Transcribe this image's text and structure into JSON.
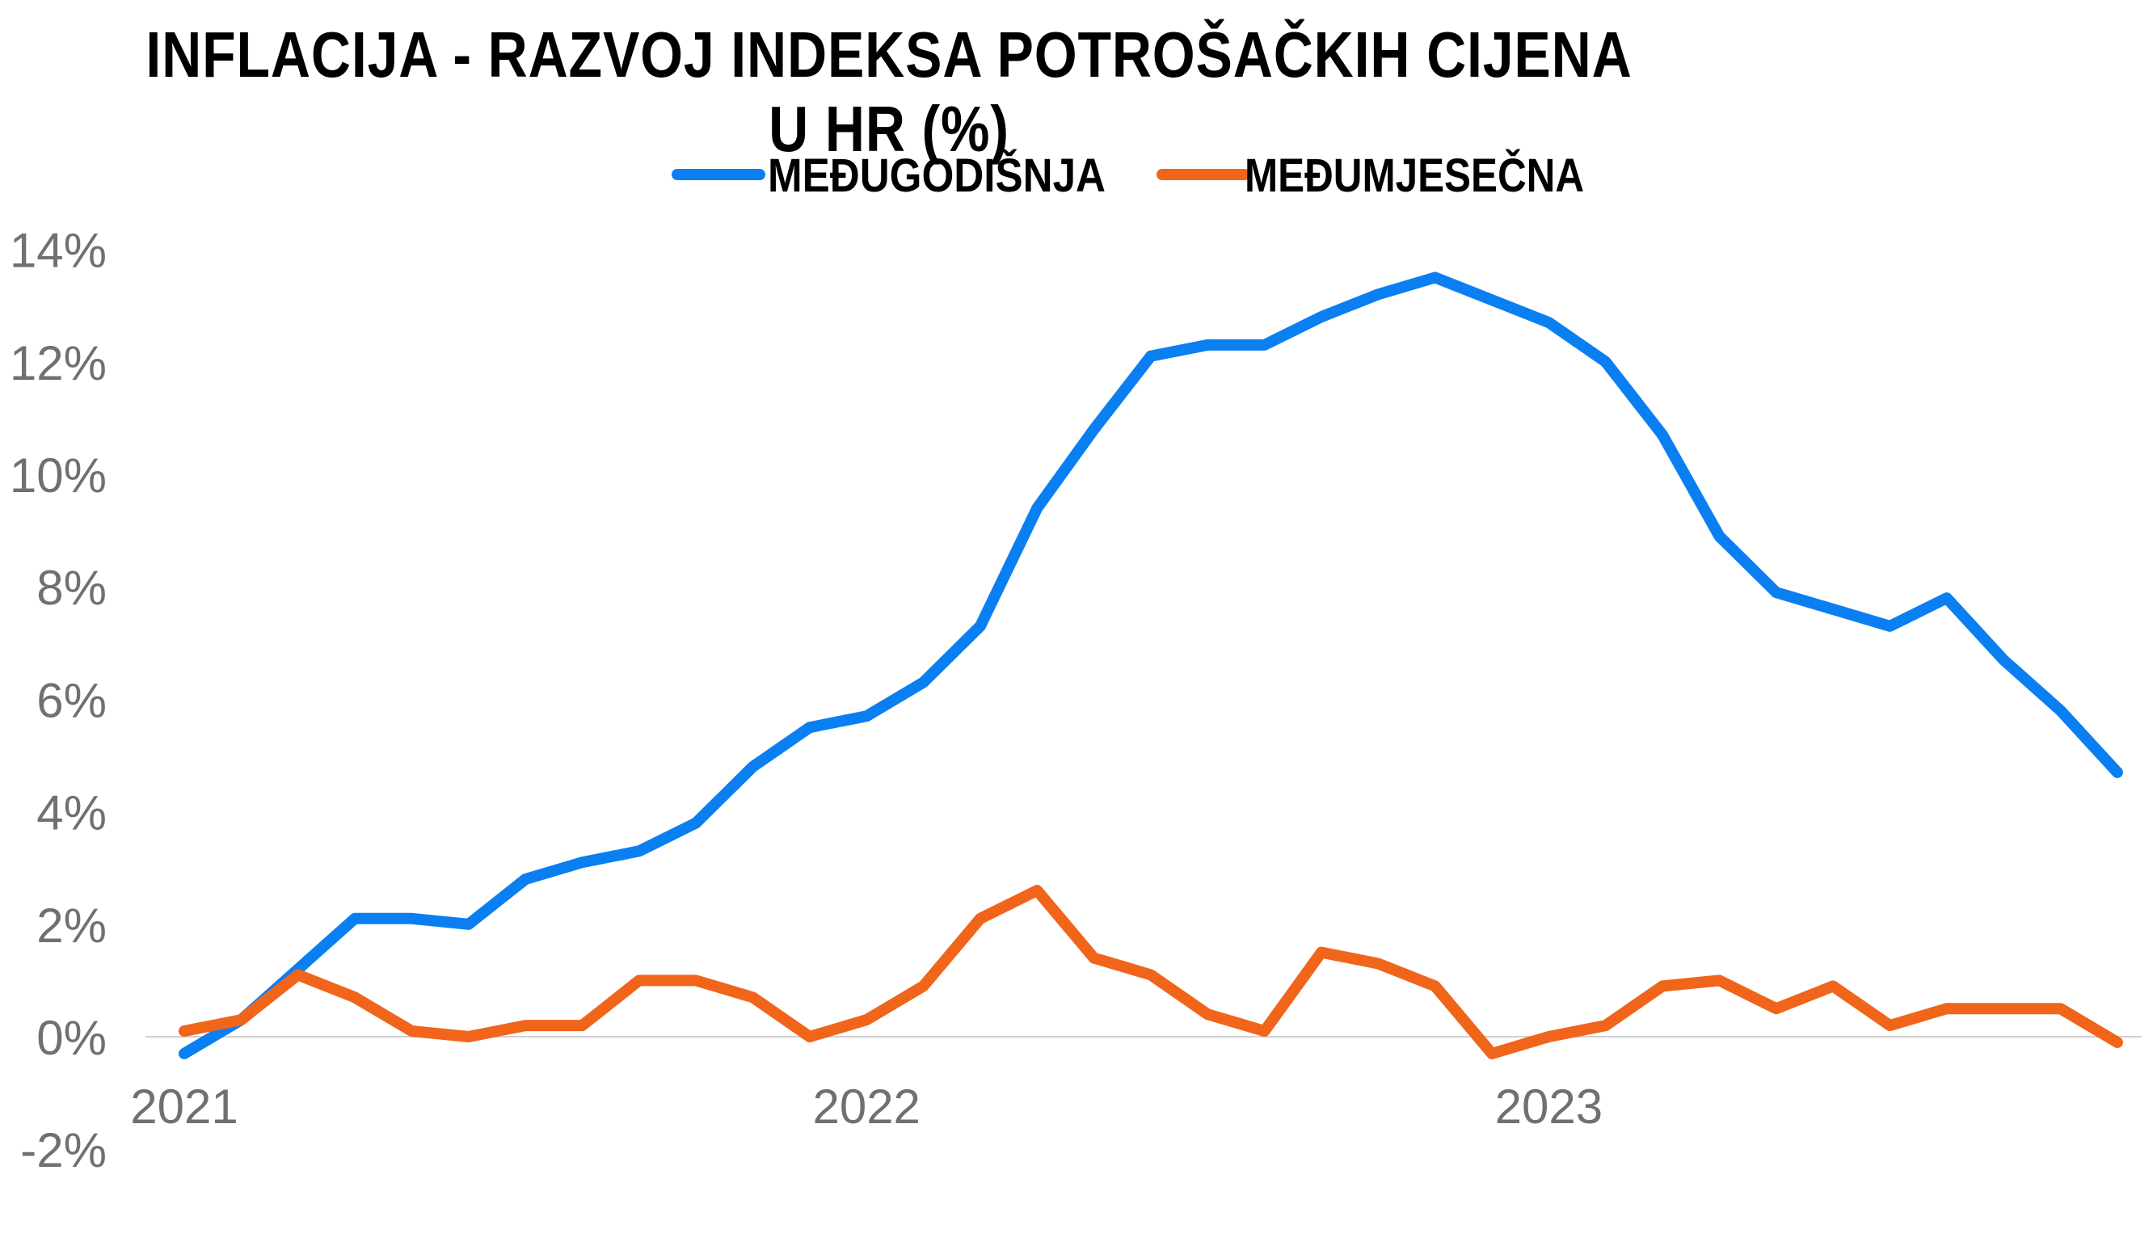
{
  "chart_data": {
    "type": "line",
    "title": "INFLACIJA - RAZVOJ  INDEKSA POTROŠAČKIH CIJENA U HR (%)",
    "legend_position": "top",
    "grid": false,
    "ylim": [
      -2,
      14
    ],
    "yticks": [
      "14%",
      "12%",
      "10%",
      "8%",
      "6%",
      "4%",
      "2%",
      "0%",
      "-2%"
    ],
    "ytick_values": [
      14,
      12,
      10,
      8,
      6,
      4,
      2,
      0,
      -2
    ],
    "xticks": [
      "2021",
      "2022",
      "2023"
    ],
    "xtick_positions": [
      0,
      12,
      24
    ],
    "x": [
      0,
      1,
      2,
      3,
      4,
      5,
      6,
      7,
      8,
      9,
      10,
      11,
      12,
      13,
      14,
      15,
      16,
      17,
      18,
      19,
      20,
      21,
      22,
      23,
      24,
      25,
      26,
      27,
      28,
      29,
      30,
      31,
      32,
      33,
      34
    ],
    "series": [
      {
        "name": "MEĐUGODIŠNJA",
        "color": "#0a7ff2",
        "values": [
          -0.3,
          0.3,
          1.2,
          2.1,
          2.1,
          2.0,
          2.8,
          3.1,
          3.3,
          3.8,
          4.8,
          5.5,
          5.7,
          6.3,
          7.3,
          9.4,
          10.8,
          12.1,
          12.3,
          12.3,
          12.8,
          13.2,
          13.5,
          13.1,
          12.7,
          12.0,
          10.7,
          8.9,
          7.9,
          7.6,
          7.3,
          7.8,
          6.7,
          5.8,
          4.7
        ]
      },
      {
        "name": "MEĐUMJESEČNA",
        "color": "#f0651a",
        "values": [
          0.1,
          0.3,
          1.1,
          0.7,
          0.1,
          0.0,
          0.2,
          0.2,
          1.0,
          1.0,
          0.7,
          0.0,
          0.3,
          0.9,
          2.1,
          2.6,
          1.4,
          1.1,
          0.4,
          0.1,
          1.5,
          1.3,
          0.9,
          -0.3,
          0.0,
          0.2,
          0.9,
          1.0,
          0.5,
          0.9,
          0.2,
          0.5,
          0.5,
          0.5,
          -0.1
        ]
      }
    ],
    "axis_color": "#d0d0d0",
    "tick_color": "#707070"
  }
}
